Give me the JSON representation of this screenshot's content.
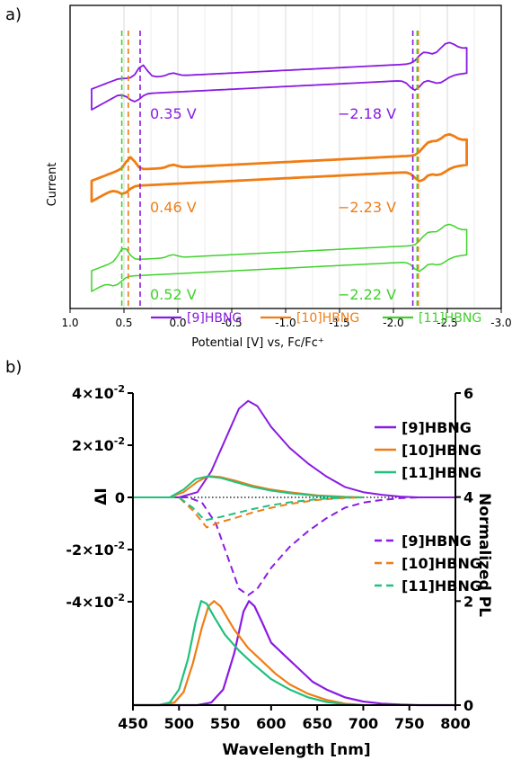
{
  "colors": {
    "hbng9": "#8a1be2",
    "hbng10": "#f07d14",
    "hbng11_cv": "#3fd22b",
    "hbng11_pl": "#21c07f",
    "axis": "#000000",
    "grid": "#d9d9d9"
  },
  "chart_data": [
    {
      "panel": "a)",
      "type": "line",
      "xlabel": "Potential [V] vs, Fc/Fc⁺",
      "ylabel": "Current",
      "xlim": [
        1.0,
        -3.0
      ],
      "x_ticks": [
        1.0,
        0.5,
        0.0,
        -0.5,
        -1.0,
        -1.5,
        -2.0,
        -2.5,
        -3.0
      ],
      "x_tick_labels": [
        "1.0",
        "0.5",
        "0.0",
        "-0.5",
        "-1.0",
        "-1.5",
        "-2.0",
        "-2.5",
        "-3.0"
      ],
      "grid": true,
      "legend_position": "bottom",
      "series": [
        {
          "name": "[9]HBNG",
          "color_key": "hbng9",
          "oxidation_potential_label": "0.35 V",
          "oxidation_potential": 0.35,
          "reduction_potential_label": "−2.18 V",
          "reduction_potential": -2.18,
          "vertical_markers": [
            0.35,
            -2.18
          ]
        },
        {
          "name": "[10]HBNG",
          "color_key": "hbng10",
          "oxidation_potential_label": "0.46 V",
          "oxidation_potential": 0.46,
          "reduction_potential_label": "−2.23 V",
          "reduction_potential": -2.23,
          "vertical_markers": [
            0.46,
            -2.23
          ]
        },
        {
          "name": "[11]HBNG",
          "color_key": "hbng11_cv",
          "oxidation_potential_label": "0.52 V",
          "oxidation_potential": 0.52,
          "reduction_potential_label": "−2.22 V",
          "reduction_potential": -2.22,
          "vertical_markers": [
            0.52,
            -2.22
          ]
        }
      ]
    },
    {
      "panel": "b)",
      "type": "line",
      "xlabel": "Wavelength  [nm]",
      "ylabel_left": "ΔI",
      "ylabel_right": "Normalized PL",
      "xlim": [
        450,
        800
      ],
      "x_ticks": [
        450,
        500,
        550,
        600,
        650,
        700,
        750,
        800
      ],
      "x_tick_labels": [
        "450",
        "500",
        "550",
        "600",
        "650",
        "700",
        "750",
        "800"
      ],
      "ylim_left": [
        -0.04,
        0.04
      ],
      "left_tick_labels": [
        {
          "value": 0.04,
          "mantissa": "4×10",
          "exp": "-2"
        },
        {
          "value": 0.02,
          "mantissa": "2×10",
          "exp": "-2"
        },
        {
          "value": 0.0,
          "mantissa": "0",
          "exp": ""
        },
        {
          "value": -0.02,
          "mantissa": "-2×10",
          "exp": "-2"
        },
        {
          "value": -0.04,
          "mantissa": "-4×10",
          "exp": "-2"
        }
      ],
      "ylim_right": [
        0,
        6
      ],
      "right_ticks": [
        6,
        4,
        2,
        0
      ],
      "right_tick_labels": [
        "6",
        "4",
        "2",
        "0"
      ],
      "grid": false,
      "legend_solid": [
        "[9]HBNG",
        "[10]HBNG",
        "[11]HBNG"
      ],
      "legend_dashed": [
        "[9]HBNG",
        "[10]HBNG",
        "[11]HBNG"
      ],
      "legend_position": "right",
      "series_delta_solid": [
        {
          "name": "[9]HBNG",
          "color_key": "hbng9",
          "x": [
            450,
            500,
            520,
            535,
            550,
            565,
            575,
            585,
            600,
            620,
            640,
            660,
            680,
            700,
            720,
            740,
            760,
            780,
            800
          ],
          "y": [
            0,
            0,
            0.002,
            0.01,
            0.022,
            0.034,
            0.037,
            0.035,
            0.027,
            0.019,
            0.013,
            0.008,
            0.004,
            0.002,
            0.001,
            0.0003,
            0,
            0,
            0
          ]
        },
        {
          "name": "[10]HBNG",
          "color_key": "hbng10",
          "x": [
            450,
            490,
            505,
            520,
            532,
            545,
            560,
            580,
            600,
            620,
            650,
            680,
            700
          ],
          "y": [
            0,
            0,
            0.002,
            0.006,
            0.0082,
            0.0078,
            0.0065,
            0.0045,
            0.003,
            0.002,
            0.0008,
            0.0002,
            0
          ]
        },
        {
          "name": "[11]HBNG",
          "color_key": "hbng11_pl",
          "x": [
            450,
            490,
            505,
            518,
            530,
            545,
            560,
            580,
            600,
            620,
            650,
            680,
            700
          ],
          "y": [
            0,
            0,
            0.003,
            0.007,
            0.008,
            0.0075,
            0.006,
            0.004,
            0.0026,
            0.0016,
            0.0006,
            0.0001,
            0
          ]
        }
      ],
      "series_delta_dashed": [
        {
          "name": "[9]HBNG",
          "color_key": "hbng9",
          "x": [
            450,
            510,
            525,
            540,
            555,
            565,
            575,
            585,
            600,
            620,
            640,
            660,
            680,
            700,
            720,
            740,
            760,
            780,
            800
          ],
          "y": [
            0,
            0,
            -0.002,
            -0.01,
            -0.025,
            -0.035,
            -0.0375,
            -0.035,
            -0.027,
            -0.019,
            -0.013,
            -0.008,
            -0.004,
            -0.002,
            -0.001,
            -0.0003,
            0,
            0,
            0
          ]
        },
        {
          "name": "[10]HBNG",
          "color_key": "hbng10",
          "x": [
            450,
            500,
            515,
            530,
            545,
            560,
            580,
            600,
            620,
            650,
            680,
            700
          ],
          "y": [
            0,
            0,
            -0.005,
            -0.0115,
            -0.0095,
            -0.008,
            -0.0058,
            -0.004,
            -0.0025,
            -0.001,
            -0.0002,
            0
          ]
        },
        {
          "name": "[11]HBNG",
          "color_key": "hbng11_pl",
          "x": [
            450,
            500,
            515,
            528,
            545,
            560,
            580,
            600,
            620,
            650,
            680,
            700
          ],
          "y": [
            0,
            0,
            -0.004,
            -0.0088,
            -0.0075,
            -0.0062,
            -0.0045,
            -0.003,
            -0.0019,
            -0.0007,
            -0.0001,
            0
          ]
        }
      ],
      "series_pl": [
        {
          "name": "[9]HBNG",
          "color_key": "hbng9",
          "x": [
            450,
            520,
            535,
            548,
            560,
            570,
            576,
            582,
            590,
            600,
            615,
            630,
            645,
            660,
            680,
            700,
            720,
            740,
            760,
            780,
            800
          ],
          "y": [
            0,
            0,
            0.05,
            0.3,
            1.0,
            1.8,
            2.0,
            1.9,
            1.6,
            1.2,
            0.95,
            0.7,
            0.45,
            0.3,
            0.15,
            0.07,
            0.03,
            0.01,
            0,
            0,
            0
          ]
        },
        {
          "name": "[10]HBNG",
          "color_key": "hbng10",
          "x": [
            450,
            480,
            495,
            505,
            515,
            525,
            532,
            538,
            545,
            560,
            575,
            590,
            605,
            620,
            640,
            660,
            680,
            700
          ],
          "y": [
            0,
            0,
            0.05,
            0.25,
            0.8,
            1.5,
            1.9,
            2.0,
            1.9,
            1.45,
            1.1,
            0.85,
            0.6,
            0.4,
            0.22,
            0.1,
            0.03,
            0
          ]
        },
        {
          "name": "[11]HBNG",
          "color_key": "hbng11_pl",
          "x": [
            450,
            478,
            490,
            500,
            510,
            518,
            524,
            530,
            538,
            550,
            565,
            580,
            600,
            620,
            640,
            660,
            680,
            700
          ],
          "y": [
            0,
            0,
            0.05,
            0.3,
            0.9,
            1.6,
            2.0,
            1.95,
            1.7,
            1.35,
            1.05,
            0.8,
            0.5,
            0.3,
            0.15,
            0.06,
            0.02,
            0
          ]
        }
      ]
    }
  ]
}
